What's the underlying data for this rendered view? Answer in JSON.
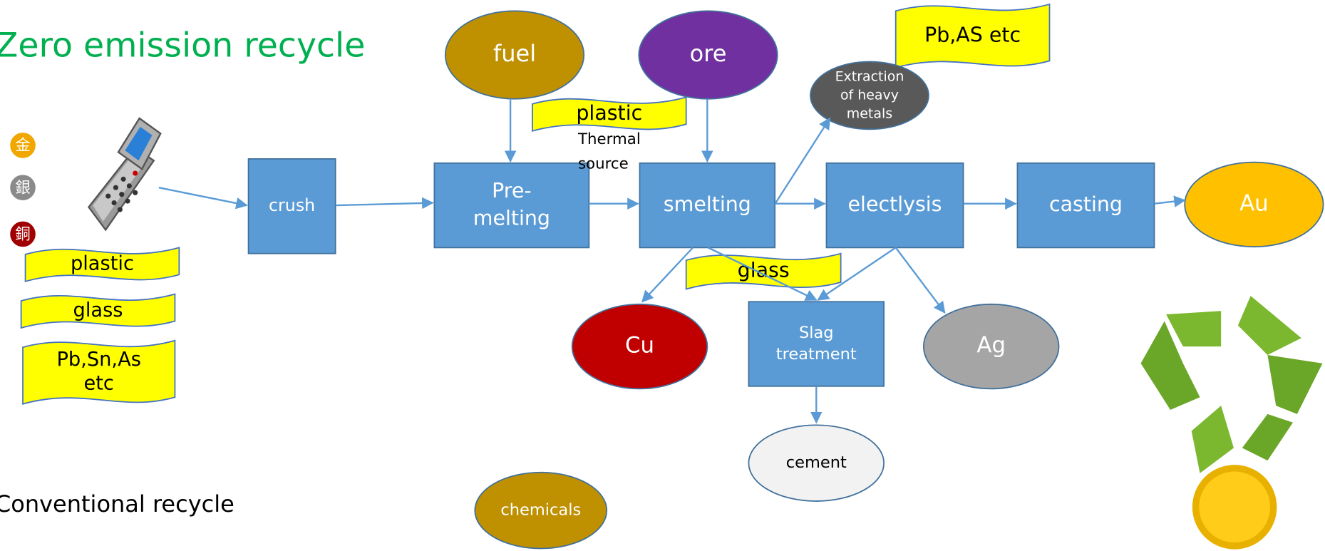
{
  "header": {
    "title": "Zero emission  recycle",
    "subtitle": "Conventional recycle"
  },
  "metals": [
    {
      "label": "金"
    },
    {
      "label": "銀"
    },
    {
      "label": "銅"
    }
  ],
  "materials": [
    {
      "lines": [
        "plastic"
      ]
    },
    {
      "lines": [
        "glass"
      ]
    },
    {
      "lines": [
        "Pb,Sn,As",
        "etc"
      ]
    }
  ],
  "processes": [
    {
      "lines": [
        "crush"
      ]
    },
    {
      "lines": [
        "Pre-",
        "melting"
      ]
    },
    {
      "lines": [
        "smelting"
      ]
    },
    {
      "lines": [
        "electlysis"
      ]
    },
    {
      "lines": [
        "casting"
      ]
    },
    {
      "lines": [
        "Slag",
        "treatment"
      ]
    }
  ],
  "inputs": [
    {
      "lines": [
        "fuel"
      ]
    },
    {
      "lines": [
        "ore"
      ]
    },
    {
      "lines": [
        "chemicals"
      ]
    }
  ],
  "outputs": [
    {
      "lines": [
        "Extraction",
        "of heavy",
        "metals"
      ]
    },
    {
      "lines": [
        "Au"
      ]
    },
    {
      "lines": [
        "Cu"
      ]
    },
    {
      "lines": [
        "Ag"
      ]
    },
    {
      "lines": [
        "cement"
      ]
    }
  ],
  "flags": [
    {
      "lines": [
        "plastic"
      ]
    },
    {
      "lines": [
        "Pb,AS etc"
      ]
    },
    {
      "lines": [
        "glass"
      ]
    }
  ],
  "notes": [
    {
      "lines": [
        "Thermal",
        "source"
      ]
    }
  ]
}
